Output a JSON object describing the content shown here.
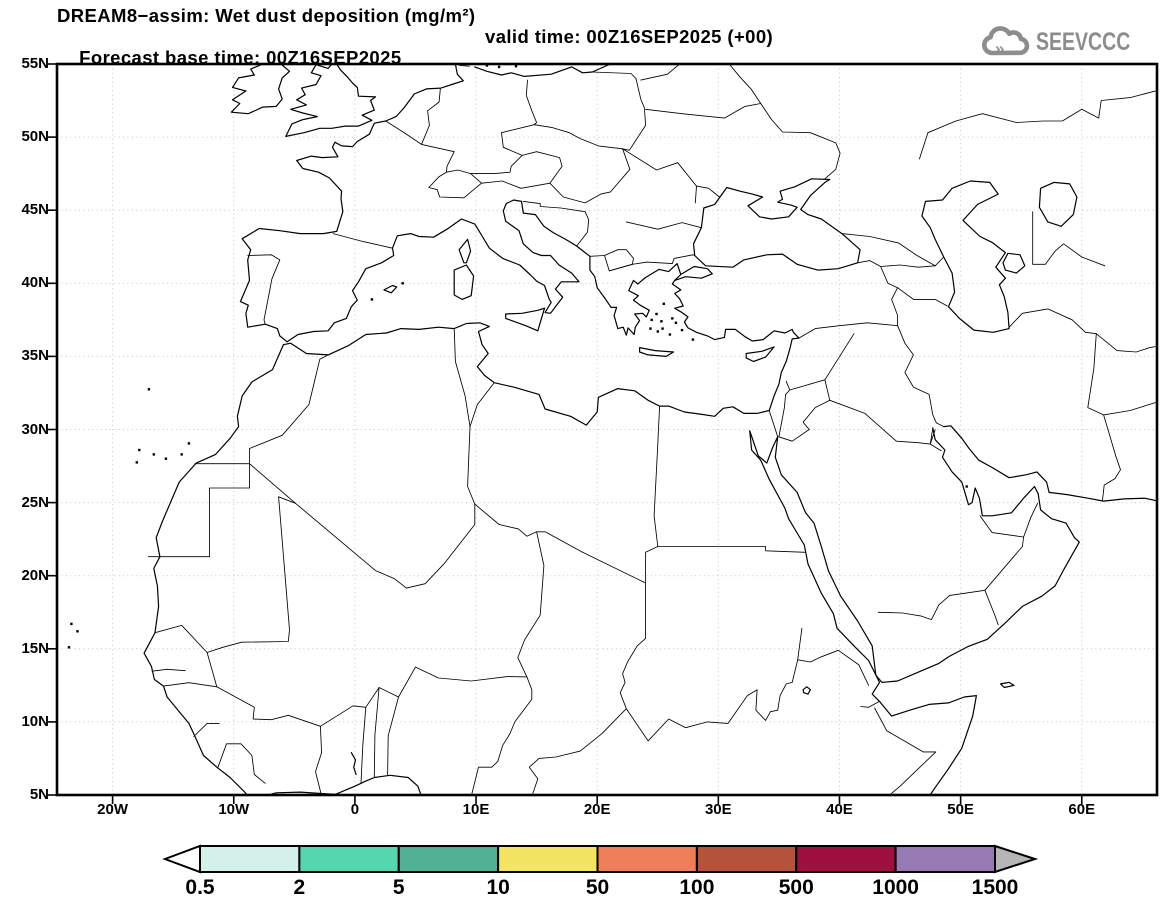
{
  "header": {
    "title_line1": "DREAM8−assim: Wet dust deposition (mg/m²)",
    "forecast_label": "Forecast base time: 00Z16SEP2025",
    "valid_label": "valid time: 00Z16SEP2025 (+00)"
  },
  "logo": {
    "text": "SEEVCCC",
    "icon": "cloud-chevron-icon",
    "color": "#8d8d8d"
  },
  "map_axes": {
    "lat_tick_labels": [
      "55N",
      "50N",
      "45N",
      "40N",
      "35N",
      "30N",
      "25N",
      "20N",
      "15N",
      "10N",
      "5N"
    ],
    "lat_tick_degrees": [
      55,
      50,
      45,
      40,
      35,
      30,
      25,
      20,
      15,
      10,
      5
    ],
    "lon_tick_labels": [
      "20W",
      "10W",
      "0",
      "10E",
      "20E",
      "30E",
      "40E",
      "50E",
      "60E"
    ],
    "lon_tick_degrees": [
      -20,
      -10,
      0,
      10,
      20,
      30,
      40,
      50,
      60
    ],
    "lon_range": [
      -24.59,
      66.21
    ],
    "lat_range": [
      5,
      55
    ],
    "grid_style": "dotted",
    "grid_color": "#c4c4c4",
    "coastline_color": "#000000",
    "background": "#ffffff"
  },
  "chart_data": {
    "type": "heatmap",
    "title": "DREAM8−assim: Wet dust deposition (mg/m²)",
    "note_field": "no wet dust deposition shaded anywhere in domain (field blank/white)",
    "legend_position": "bottom",
    "legend_thresholds": [
      0.5,
      2,
      5,
      10,
      50,
      100,
      500,
      1000,
      1500
    ],
    "legend_colors": [
      "#d3f0e9",
      "#55d6ac",
      "#50b091",
      "#f4e463",
      "#ee7e58",
      "#b4523a",
      "#9e1040",
      "#9779b4"
    ]
  },
  "colorbar": {
    "tick_labels": [
      "0.5",
      "2",
      "5",
      "10",
      "50",
      "100",
      "500",
      "1000",
      "1500"
    ],
    "segment_colors": [
      "#d3f0e9",
      "#55d6ac",
      "#50b091",
      "#f4e463",
      "#ee7e58",
      "#b4523a",
      "#9e1040",
      "#9779b4"
    ],
    "left_arrow_color": "#ffffff",
    "right_arrow_color": "#b6b6b6",
    "outline_color": "#000000"
  }
}
